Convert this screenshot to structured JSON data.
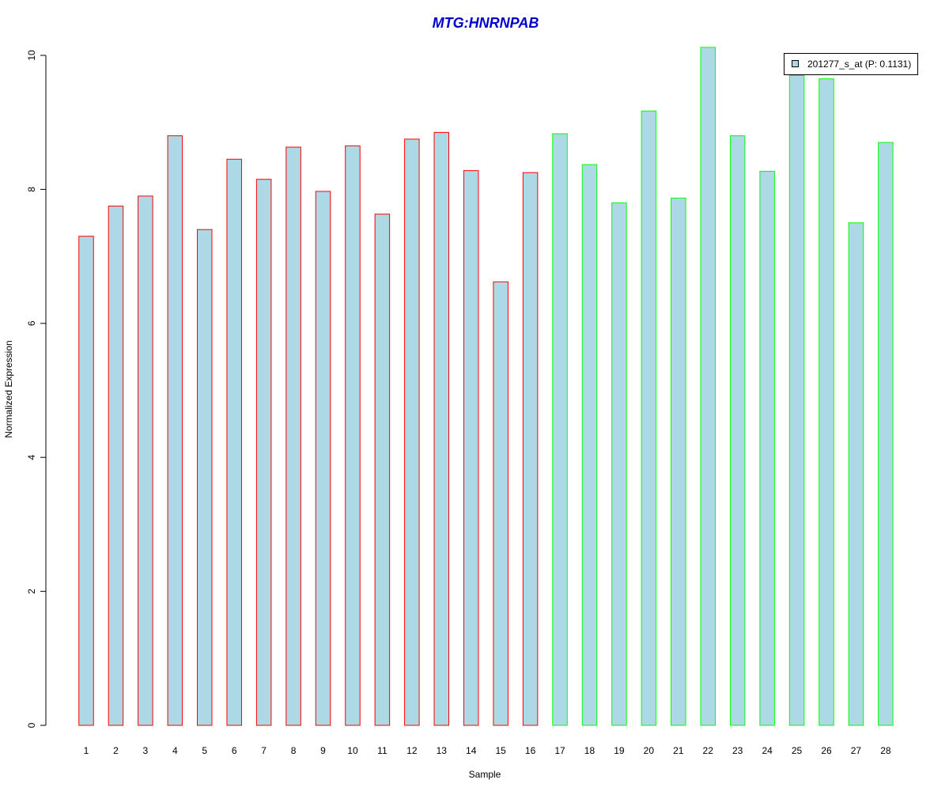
{
  "chart_data": {
    "type": "bar",
    "title": "MTG:HNRNPAB",
    "xlabel": "Sample",
    "ylabel": "Normalized Expression",
    "ylim": [
      0,
      10
    ],
    "yticks": [
      0,
      2,
      4,
      6,
      8,
      10
    ],
    "categories": [
      "1",
      "2",
      "3",
      "4",
      "5",
      "6",
      "7",
      "8",
      "9",
      "10",
      "11",
      "12",
      "13",
      "14",
      "15",
      "16",
      "17",
      "18",
      "19",
      "20",
      "21",
      "22",
      "23",
      "24",
      "25",
      "26",
      "27",
      "28"
    ],
    "values": [
      7.3,
      7.75,
      7.9,
      8.8,
      7.4,
      8.45,
      8.15,
      8.63,
      7.97,
      8.65,
      7.63,
      8.75,
      8.85,
      8.28,
      6.62,
      8.25,
      8.83,
      8.37,
      7.8,
      9.17,
      7.87,
      10.12,
      8.8,
      8.27,
      9.7,
      9.65,
      7.5,
      8.7
    ],
    "group_size_first": 16,
    "fill_color": "#add8e6",
    "border_colors": {
      "group1": "#ff0000",
      "group2": "#00ff00"
    },
    "legend": {
      "label": "201277_s_at (P: 0.1131)",
      "position": "top-right"
    }
  }
}
